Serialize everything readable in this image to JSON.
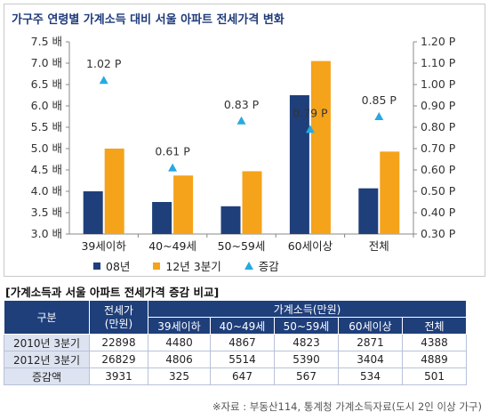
{
  "chart_data": {
    "type": "bar",
    "title": "가구주 연령별 가계소득 대비 서울 아파트 전세가격 변화",
    "categories": [
      "39세이하",
      "40~49세",
      "50~59세",
      "60세이상",
      "전체"
    ],
    "series": [
      {
        "name": "08년",
        "values": [
          4.0,
          3.75,
          3.65,
          6.25,
          4.07
        ],
        "color": "#1f3f7b"
      },
      {
        "name": "12년 3분기",
        "values": [
          5.0,
          4.37,
          4.47,
          7.05,
          4.93
        ],
        "color": "#f5a31a"
      },
      {
        "name": "증감",
        "values": [
          1.02,
          0.61,
          0.83,
          0.79,
          0.85
        ],
        "color": "#27a9e1",
        "axis": "right"
      }
    ],
    "y_left": {
      "min": 3.0,
      "max": 7.5,
      "step": 0.5,
      "ticks": [
        "3.0 배",
        "3.5 배",
        "4.0 배",
        "4.5 배",
        "5.0 배",
        "5.5 배",
        "6.0 배",
        "6.5 배",
        "7.0 배",
        "7.5 배"
      ]
    },
    "y_right": {
      "min": 0.3,
      "max": 1.2,
      "step": 0.1,
      "ticks": [
        "0.30 P",
        "0.40 P",
        "0.50 P",
        "0.60 P",
        "0.70 P",
        "0.80 P",
        "0.90 P",
        "1.00 P",
        "1.10 P",
        "1.20 P"
      ]
    },
    "annotations": [
      "1.02 P",
      "0.61 P",
      "0.83 P",
      "0.79 P",
      "0.85 P"
    ],
    "grid": false,
    "legend_position": "bottom"
  },
  "legend": {
    "item1": "08년",
    "item2": "12년 3분기",
    "item3": "증감"
  },
  "table": {
    "title": "[가계소득과 서울 아파트 전세가격 증감 비교]",
    "header": {
      "col1": "구분",
      "col2": "전세가\n(만원)",
      "group": "가계소득(만원)",
      "sub": [
        "39세이하",
        "40~49세",
        "50~59세",
        "60세이상",
        "전체"
      ]
    },
    "rows": [
      {
        "label": "2010년 3분기",
        "jeonse": "22898",
        "vals": [
          "4480",
          "4867",
          "4823",
          "2871",
          "4388"
        ]
      },
      {
        "label": "2012년 3분기",
        "jeonse": "26829",
        "vals": [
          "4806",
          "5514",
          "5390",
          "3404",
          "4889"
        ]
      },
      {
        "label": "증감액",
        "jeonse": "3931",
        "vals": [
          "325",
          "647",
          "567",
          "534",
          "501"
        ]
      }
    ]
  },
  "source": "※자료 : 부동산114, 통계청 가계소득자료(도시 2인 이상 가구)"
}
